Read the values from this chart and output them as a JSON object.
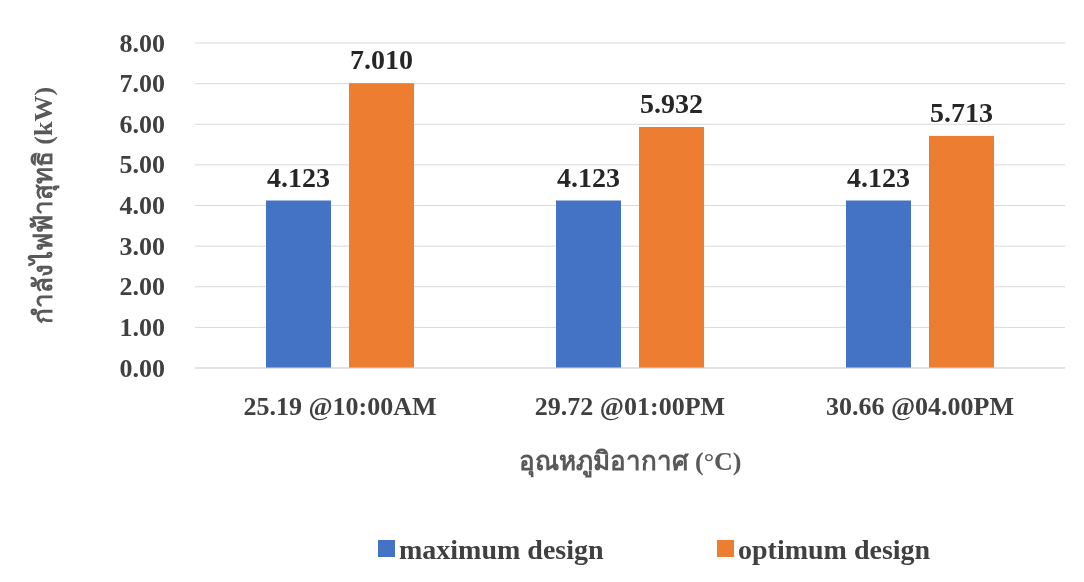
{
  "chart_data": {
    "type": "bar",
    "xlabel": "อุณหภูมิอากาศ (°C)",
    "ylabel": "กำลังไฟฟ้าสุทธิ (kW)",
    "categories": [
      "25.19 @10:00AM",
      "29.72 @01:00PM",
      "30.66 @04.00PM"
    ],
    "series": [
      {
        "name": "maximum design",
        "color": "#4472c4",
        "values": [
          4.123,
          4.123,
          4.123
        ],
        "value_labels": [
          "4.123",
          "4.123",
          "4.123"
        ]
      },
      {
        "name": "optimum design",
        "color": "#ed7d31",
        "values": [
          7.01,
          5.932,
          5.713
        ],
        "value_labels": [
          "7.010",
          "5.932",
          "5.713"
        ]
      }
    ],
    "ylim": [
      0,
      8
    ],
    "yticks": [
      {
        "value": 0,
        "label": "0.00"
      },
      {
        "value": 1,
        "label": "1.00"
      },
      {
        "value": 2,
        "label": "2.00"
      },
      {
        "value": 3,
        "label": "3.00"
      },
      {
        "value": 4,
        "label": "4.00"
      },
      {
        "value": 5,
        "label": "5.00"
      },
      {
        "value": 6,
        "label": "6.00"
      },
      {
        "value": 7,
        "label": "7.00"
      },
      {
        "value": 8,
        "label": "8.00"
      }
    ],
    "grid": "y",
    "legend": "bottom"
  }
}
